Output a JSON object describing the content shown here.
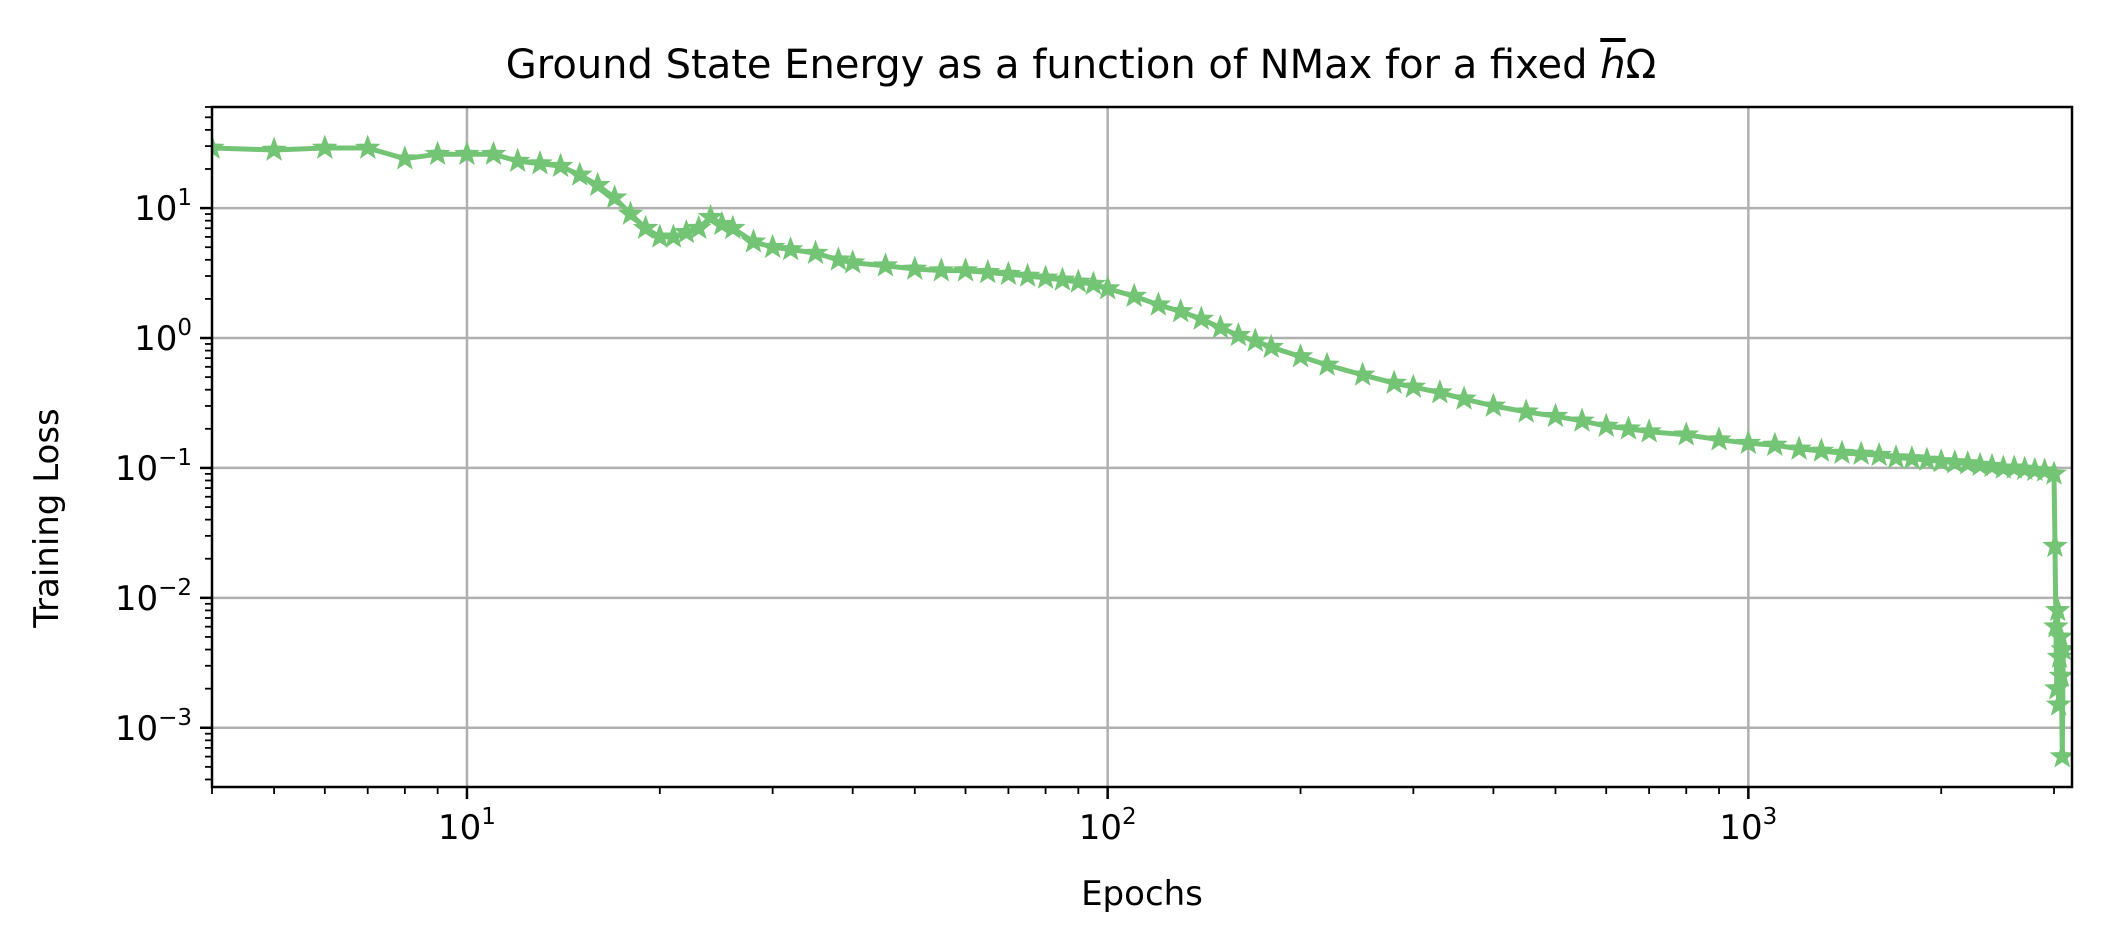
{
  "chart_data": {
    "type": "line",
    "title": "Ground State Energy as a function of NMax for a fixed ",
    "title_symbol_h": "h",
    "title_symbol_omega": "Ω",
    "xlabel": "Epochs",
    "ylabel": "Training Loss",
    "xscale": "log",
    "yscale": "log",
    "xlim": [
      4,
      3200
    ],
    "ylim": [
      0.00035,
      60
    ],
    "grid": true,
    "x_ticks": [
      {
        "value": 10,
        "base": "10",
        "exp": "1"
      },
      {
        "value": 100,
        "base": "10",
        "exp": "2"
      },
      {
        "value": 1000,
        "base": "10",
        "exp": "3"
      }
    ],
    "y_ticks": [
      {
        "value": 10,
        "base": "10",
        "exp": "1"
      },
      {
        "value": 1,
        "base": "10",
        "exp": "0"
      },
      {
        "value": 0.1,
        "base": "10",
        "exp": "−1"
      },
      {
        "value": 0.01,
        "base": "10",
        "exp": "−2"
      },
      {
        "value": 0.001,
        "base": "10",
        "exp": "−3"
      }
    ],
    "series": [
      {
        "color": "#74c476",
        "marker": "star",
        "x": [
          4,
          5,
          6,
          7,
          8,
          9,
          10,
          11,
          12,
          13,
          14,
          15,
          16,
          17,
          18,
          19,
          20,
          21,
          22,
          23,
          24,
          25,
          26,
          28,
          30,
          32,
          35,
          38,
          40,
          45,
          50,
          55,
          60,
          65,
          70,
          75,
          80,
          85,
          90,
          95,
          100,
          110,
          120,
          130,
          140,
          150,
          160,
          170,
          180,
          200,
          220,
          250,
          280,
          300,
          330,
          360,
          400,
          450,
          500,
          550,
          600,
          650,
          700,
          800,
          900,
          1000,
          1100,
          1200,
          1300,
          1400,
          1500,
          1600,
          1700,
          1800,
          1900,
          2000,
          2100,
          2200,
          2300,
          2400,
          2500,
          2600,
          2700,
          2800,
          2900,
          3000,
          3010,
          3020,
          3030,
          3040,
          3050,
          3060,
          3070,
          3080,
          3090,
          3100
        ],
        "y": [
          29,
          28,
          29,
          29,
          24,
          26,
          26,
          26,
          23,
          22,
          21,
          18,
          15,
          12,
          9,
          7,
          6,
          6,
          6.5,
          7,
          8.5,
          7.5,
          7,
          5.5,
          5,
          4.8,
          4.5,
          4,
          3.8,
          3.6,
          3.4,
          3.3,
          3.3,
          3.2,
          3.1,
          3,
          2.9,
          2.8,
          2.7,
          2.6,
          2.4,
          2.1,
          1.8,
          1.6,
          1.4,
          1.2,
          1.05,
          0.95,
          0.85,
          0.72,
          0.62,
          0.52,
          0.45,
          0.42,
          0.38,
          0.34,
          0.3,
          0.27,
          0.25,
          0.23,
          0.21,
          0.2,
          0.19,
          0.18,
          0.165,
          0.155,
          0.15,
          0.14,
          0.135,
          0.13,
          0.128,
          0.125,
          0.12,
          0.118,
          0.115,
          0.112,
          0.11,
          0.108,
          0.105,
          0.103,
          0.1,
          0.1,
          0.098,
          0.096,
          0.095,
          0.09,
          0.025,
          0.006,
          0.002,
          0.008,
          0.0015,
          0.0035,
          0.005,
          0.0025,
          0.0006,
          0.004
        ]
      }
    ]
  }
}
